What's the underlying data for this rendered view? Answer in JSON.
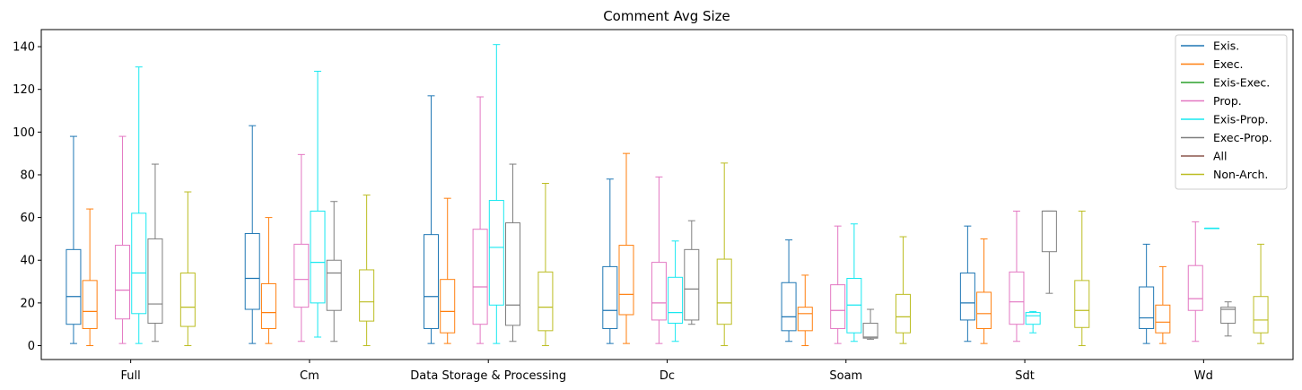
{
  "chart_data": {
    "type": "boxplot",
    "title": "Comment Avg Size",
    "xlabel": "",
    "ylabel": "",
    "ylim": [
      -6.5,
      148
    ],
    "yticks": [
      0,
      20,
      40,
      60,
      80,
      100,
      120,
      140
    ],
    "grid": false,
    "legend_position": "top-right",
    "categories": [
      "Full",
      "Cm",
      "Data Storage & Processing",
      "Dc",
      "Soam",
      "Sdt",
      "Wd"
    ],
    "series": [
      {
        "name": "Exis.",
        "color": "#1f77b4",
        "boxes": [
          {
            "whislo": 1,
            "q1": 10,
            "med": 23,
            "q3": 45,
            "whishi": 98
          },
          {
            "whislo": 1,
            "q1": 17,
            "med": 31.5,
            "q3": 52.5,
            "whishi": 103
          },
          {
            "whislo": 1,
            "q1": 8,
            "med": 23,
            "q3": 52,
            "whishi": 117
          },
          {
            "whislo": 1,
            "q1": 8,
            "med": 16.5,
            "q3": 37,
            "whishi": 78
          },
          {
            "whislo": 2,
            "q1": 7,
            "med": 13.5,
            "q3": 29.5,
            "whishi": 49.5
          },
          {
            "whislo": 2,
            "q1": 12,
            "med": 20,
            "q3": 34,
            "whishi": 56
          },
          {
            "whislo": 1,
            "q1": 8,
            "med": 13,
            "q3": 27.5,
            "whishi": 47.5
          }
        ]
      },
      {
        "name": "Exec.",
        "color": "#ff7f0e",
        "boxes": [
          {
            "whislo": 0,
            "q1": 8,
            "med": 16,
            "q3": 30.5,
            "whishi": 64
          },
          {
            "whislo": 1,
            "q1": 8,
            "med": 15.5,
            "q3": 29,
            "whishi": 60
          },
          {
            "whislo": 1,
            "q1": 6,
            "med": 16,
            "q3": 31,
            "whishi": 69
          },
          {
            "whislo": 1,
            "q1": 14.5,
            "med": 24,
            "q3": 47,
            "whishi": 90
          },
          {
            "whislo": 0,
            "q1": 7,
            "med": 15,
            "q3": 18,
            "whishi": 33
          },
          {
            "whislo": 1,
            "q1": 8,
            "med": 15,
            "q3": 25,
            "whishi": 50
          },
          {
            "whislo": 1,
            "q1": 6,
            "med": 11,
            "q3": 19,
            "whishi": 37
          }
        ]
      },
      {
        "name": "Exis-Exec.",
        "color": "#2ca02c",
        "boxes": [
          null,
          null,
          null,
          null,
          null,
          null,
          null
        ]
      },
      {
        "name": "Prop.",
        "color": "#e377c2",
        "boxes": [
          {
            "whislo": 1,
            "q1": 12.5,
            "med": 26,
            "q3": 47,
            "whishi": 98
          },
          {
            "whislo": 2,
            "q1": 18,
            "med": 31,
            "q3": 47.5,
            "whishi": 89.5
          },
          {
            "whislo": 1,
            "q1": 10,
            "med": 27.5,
            "q3": 54.5,
            "whishi": 116.5
          },
          {
            "whislo": 1,
            "q1": 12,
            "med": 20,
            "q3": 39,
            "whishi": 79
          },
          {
            "whislo": 1,
            "q1": 8,
            "med": 16.5,
            "q3": 28.5,
            "whishi": 56
          },
          {
            "whislo": 2,
            "q1": 10,
            "med": 20.5,
            "q3": 34.5,
            "whishi": 63
          },
          {
            "whislo": 2,
            "q1": 16.5,
            "med": 22,
            "q3": 37.5,
            "whishi": 58
          }
        ]
      },
      {
        "name": "Exis-Prop.",
        "color": "#17e8f0",
        "boxes": [
          {
            "whislo": 1,
            "q1": 15,
            "med": 34,
            "q3": 62,
            "whishi": 130.5
          },
          {
            "whislo": 4,
            "q1": 20,
            "med": 39,
            "q3": 63,
            "whishi": 128.5
          },
          {
            "whislo": 1,
            "q1": 19,
            "med": 46,
            "q3": 68,
            "whishi": 141
          },
          {
            "whislo": 2,
            "q1": 10.5,
            "med": 15.5,
            "q3": 32,
            "whishi": 49
          },
          {
            "whislo": 2,
            "q1": 6,
            "med": 19,
            "q3": 31.5,
            "whishi": 57
          },
          {
            "whislo": 6,
            "q1": 10,
            "med": 14,
            "q3": 15.5,
            "whishi": 16
          },
          {
            "whislo": 55,
            "q1": 55,
            "med": 55,
            "q3": 55,
            "whishi": 55
          }
        ]
      },
      {
        "name": "Exec-Prop.",
        "color": "#7f7f7f",
        "boxes": [
          {
            "whislo": 2,
            "q1": 10.5,
            "med": 19.5,
            "q3": 50,
            "whishi": 85
          },
          {
            "whislo": 2,
            "q1": 16.5,
            "med": 34,
            "q3": 40,
            "whishi": 67.5
          },
          {
            "whislo": 2,
            "q1": 9.5,
            "med": 19,
            "q3": 57.5,
            "whishi": 85
          },
          {
            "whislo": 10,
            "q1": 12,
            "med": 26.5,
            "q3": 45,
            "whishi": 58.5
          },
          {
            "whislo": 3,
            "q1": 3.5,
            "med": 4,
            "q3": 10.5,
            "whishi": 17
          },
          {
            "whislo": 24.5,
            "q1": 44,
            "med": 63,
            "q3": 63,
            "whishi": 63
          },
          {
            "whislo": 4.5,
            "q1": 10.5,
            "med": 17,
            "q3": 18,
            "whishi": 20.5
          }
        ]
      },
      {
        "name": "All",
        "color": "#8c564b",
        "boxes": [
          null,
          null,
          null,
          null,
          null,
          null,
          null
        ]
      },
      {
        "name": "Non-Arch.",
        "color": "#bcbd22",
        "boxes": [
          {
            "whislo": 0,
            "q1": 9,
            "med": 18,
            "q3": 34,
            "whishi": 72
          },
          {
            "whislo": 0,
            "q1": 11.5,
            "med": 20.5,
            "q3": 35.5,
            "whishi": 70.5
          },
          {
            "whislo": 0,
            "q1": 7,
            "med": 18,
            "q3": 34.5,
            "whishi": 76
          },
          {
            "whislo": 0,
            "q1": 10,
            "med": 20,
            "q3": 40.5,
            "whishi": 85.5
          },
          {
            "whislo": 1,
            "q1": 6,
            "med": 13.5,
            "q3": 24,
            "whishi": 51
          },
          {
            "whislo": 0,
            "q1": 8.5,
            "med": 16.5,
            "q3": 30.5,
            "whishi": 63
          },
          {
            "whislo": 1,
            "q1": 6,
            "med": 12,
            "q3": 23,
            "whishi": 47.5
          }
        ]
      }
    ]
  }
}
